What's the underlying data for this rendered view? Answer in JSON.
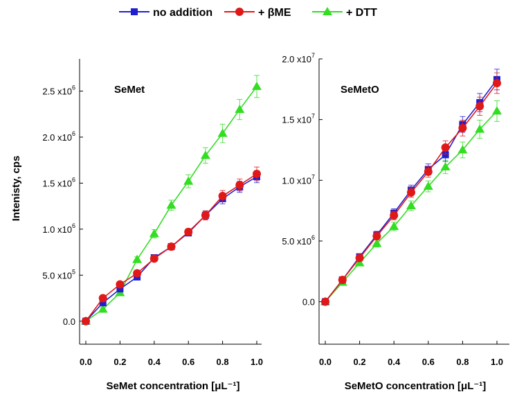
{
  "legend": [
    {
      "label": "no addition",
      "color": "#1f1fd0",
      "marker": "square"
    },
    {
      "label": "+ βME",
      "color": "#e01818",
      "marker": "circle"
    },
    {
      "label": "+ DTT",
      "color": "#33dd22",
      "marker": "triangle"
    }
  ],
  "chart_data": [
    {
      "type": "line",
      "title": "SeMet",
      "xlabel": "SeMet concentration [μL⁻¹]",
      "ylabel": "Intenisty, cps",
      "xlim": [
        0,
        1.0
      ],
      "ylim": [
        -250000,
        2850000
      ],
      "xticks": [
        0,
        0.2,
        0.4,
        0.6,
        0.8,
        1.0
      ],
      "xtick_labels": [
        "0.0",
        "0.2",
        "0.4",
        "0.6",
        "0.8",
        "1.0"
      ],
      "yticks": [
        0,
        500000,
        1000000,
        1500000,
        2000000,
        2500000
      ],
      "ytick_labels": [
        {
          "main": "0.0",
          "exp": ""
        },
        {
          "main": "5.0 x10",
          "exp": "5"
        },
        {
          "main": "1.0 x10",
          "exp": "6"
        },
        {
          "main": "1.5 x10",
          "exp": "6"
        },
        {
          "main": "2.0 x10",
          "exp": "6"
        },
        {
          "main": "2.5 x10",
          "exp": "6"
        }
      ],
      "x": [
        0,
        0.1,
        0.2,
        0.3,
        0.4,
        0.5,
        0.6,
        0.7,
        0.8,
        0.9,
        1.0
      ],
      "series": [
        {
          "name": "no addition",
          "values": [
            0,
            200000,
            350000,
            480000,
            690000,
            810000,
            960000,
            1150000,
            1330000,
            1460000,
            1570000
          ],
          "errors": [
            0,
            20000,
            20000,
            25000,
            30000,
            30000,
            35000,
            45000,
            55000,
            60000,
            65000
          ]
        },
        {
          "name": "+ βME",
          "values": [
            0,
            250000,
            400000,
            520000,
            680000,
            810000,
            970000,
            1150000,
            1360000,
            1480000,
            1600000
          ],
          "errors": [
            0,
            20000,
            20000,
            25000,
            30000,
            30000,
            35000,
            50000,
            60000,
            65000,
            75000
          ]
        },
        {
          "name": "+ DTT",
          "values": [
            0,
            130000,
            310000,
            670000,
            950000,
            1260000,
            1520000,
            1800000,
            2040000,
            2300000,
            2550000
          ],
          "errors": [
            0,
            20000,
            25000,
            30000,
            45000,
            55000,
            70000,
            85000,
            100000,
            110000,
            120000
          ]
        }
      ]
    },
    {
      "type": "line",
      "title": "SeMetO",
      "xlabel": "SeMetO concentration [μL⁻¹]",
      "ylabel": "",
      "xlim": [
        0,
        1.1
      ],
      "ylim": [
        -3500000,
        20000000
      ],
      "xticks": [
        0,
        0.2,
        0.4,
        0.6,
        0.8,
        1.0
      ],
      "xtick_labels": [
        "0.0",
        "0.2",
        "0.4",
        "0.6",
        "0.8",
        "1.0"
      ],
      "yticks": [
        0,
        5000000,
        10000000,
        15000000,
        20000000
      ],
      "ytick_labels": [
        {
          "main": "0.0",
          "exp": ""
        },
        {
          "main": "5.0 x10",
          "exp": "6"
        },
        {
          "main": "1.0 x10",
          "exp": "7"
        },
        {
          "main": "1.5 x10",
          "exp": "7"
        },
        {
          "main": "2.0 x10",
          "exp": "7"
        }
      ],
      "x": [
        0,
        0.1,
        0.2,
        0.3,
        0.4,
        0.5,
        0.6,
        0.7,
        0.8,
        0.9,
        1.0
      ],
      "series": [
        {
          "name": "no addition",
          "values": [
            0,
            1800000,
            3700000,
            5500000,
            7300000,
            9200000,
            10900000,
            12100000,
            14600000,
            16400000,
            18300000
          ],
          "errors": [
            0,
            200000,
            250000,
            300000,
            350000,
            400000,
            450000,
            550000,
            650000,
            750000,
            850000
          ]
        },
        {
          "name": "+ βME",
          "values": [
            0,
            1800000,
            3600000,
            5400000,
            7100000,
            9000000,
            10700000,
            12700000,
            14300000,
            16100000,
            18000000
          ],
          "errors": [
            0,
            200000,
            250000,
            300000,
            350000,
            400000,
            450000,
            550000,
            650000,
            750000,
            850000
          ]
        },
        {
          "name": "+ DTT",
          "values": [
            0,
            1600000,
            3200000,
            4800000,
            6200000,
            7900000,
            9500000,
            11100000,
            12500000,
            14200000,
            15700000
          ],
          "errors": [
            0,
            200000,
            250000,
            300000,
            350000,
            400000,
            450000,
            550000,
            650000,
            750000,
            850000
          ]
        }
      ]
    }
  ]
}
